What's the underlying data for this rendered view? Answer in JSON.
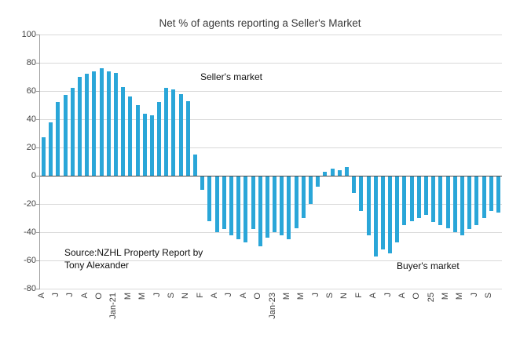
{
  "chart_data": {
    "type": "bar",
    "title": "Net % of agents reporting a Seller's Market",
    "xlabel": "",
    "ylabel": "",
    "ylim": [
      -80,
      100
    ],
    "yticks": [
      100,
      80,
      60,
      40,
      20,
      0,
      -20,
      -40,
      -60,
      -80
    ],
    "grid": true,
    "legend": "none",
    "bar_color": "#2AA6D8",
    "categories": [
      "A",
      "",
      "J",
      "",
      "J",
      "",
      "A",
      "",
      "O",
      "",
      "Jan-21",
      "",
      "M",
      "",
      "M",
      "",
      "J",
      "",
      "S",
      "",
      "N",
      "",
      "F",
      "",
      "A",
      "",
      "J",
      "",
      "A",
      "",
      "O",
      "",
      "Jan-23",
      "",
      "M",
      "",
      "M",
      "",
      "J",
      "",
      "S",
      "",
      "N",
      "",
      "F",
      "",
      "A",
      "",
      "J",
      "",
      "A",
      "",
      "O",
      "",
      "25",
      "",
      "M",
      "",
      "M",
      "",
      "J",
      "",
      "S",
      ""
    ],
    "values": [
      27,
      38,
      52,
      57,
      62,
      70,
      72,
      74,
      76,
      74,
      73,
      63,
      56,
      50,
      44,
      43,
      52,
      62,
      61,
      58,
      53,
      15,
      -10,
      -32,
      -40,
      -38,
      -42,
      -45,
      -47,
      -38,
      -50,
      -44,
      -40,
      -42,
      -45,
      -37,
      -30,
      -20,
      -8,
      3,
      5,
      4,
      6,
      -12,
      -25,
      -42,
      -57,
      -52,
      -55,
      -47,
      -35,
      -32,
      -30,
      -28,
      -33,
      -35,
      -37,
      -40,
      -42,
      -38,
      -35,
      -30,
      -25,
      -26
    ],
    "annotations": {
      "sellers": "Seller's market",
      "buyers": "Buyer's market",
      "source_line1": "Source:NZHL  Property Report by",
      "source_line2": "Tony Alexander"
    }
  }
}
